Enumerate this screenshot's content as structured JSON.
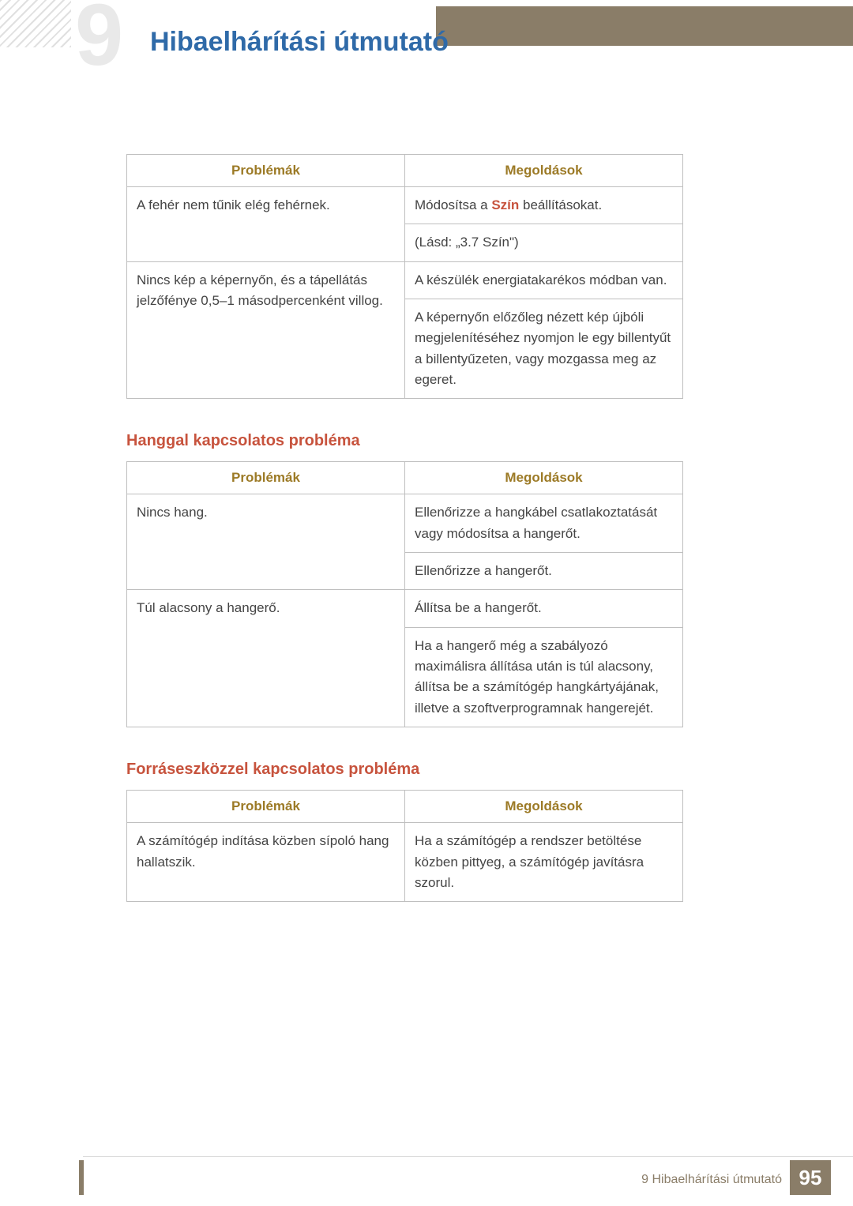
{
  "chapter_digit": "9",
  "page_title": "Hibaelhárítási útmutató",
  "colors": {
    "title": "#2f6aa8",
    "section_heading": "#c7533d",
    "table_header_text": "#9c7a26",
    "table_border": "#bfbfbf",
    "topbar": "#8a7d68",
    "footer_text": "#8a7d68",
    "page_num_bg": "#8a7d68",
    "page_num_text": "#ffffff",
    "body_text": "#444444",
    "inline_bold": "#c7533d"
  },
  "sections": [
    {
      "heading": null,
      "columns": [
        "Problémák",
        "Megoldások"
      ],
      "rows": [
        {
          "problem": "A fehér nem tűnik elég fehérnek.",
          "solutions": [
            {
              "prefix": "Módosítsa a ",
              "bold": "Szín",
              "suffix": " beállításokat."
            },
            {
              "text": "(Lásd: „3.7 Szín\")"
            }
          ]
        },
        {
          "problem": "Nincs kép a képernyőn, és a tápellátás jelzőfénye 0,5–1 másodpercenként villog.",
          "solutions": [
            {
              "text": "A készülék energiatakarékos módban van."
            },
            {
              "text": "A képernyőn előzőleg nézett kép újbóli megjelenítéséhez nyomjon le egy billentyűt a billentyűzeten, vagy mozgassa meg az egeret."
            }
          ]
        }
      ]
    },
    {
      "heading": "Hanggal kapcsolatos probléma",
      "columns": [
        "Problémák",
        "Megoldások"
      ],
      "rows": [
        {
          "problem": "Nincs hang.",
          "solutions": [
            {
              "text": "Ellenőrizze a hangkábel csatlakoztatását vagy módosítsa a hangerőt."
            },
            {
              "text": "Ellenőrizze a hangerőt."
            }
          ]
        },
        {
          "problem": "Túl alacsony a hangerő.",
          "solutions": [
            {
              "text": "Állítsa be a hangerőt."
            },
            {
              "text": "Ha a hangerő még a szabályozó maximálisra állítása után is túl alacsony, állítsa be a számítógép hangkártyájának, illetve a szoftverprogramnak hangerejét."
            }
          ]
        }
      ]
    },
    {
      "heading": "Forráseszközzel kapcsolatos probléma",
      "columns": [
        "Problémák",
        "Megoldások"
      ],
      "rows": [
        {
          "problem": "A számítógép indítása közben sípoló hang hallatszik.",
          "solutions": [
            {
              "text": "Ha a számítógép a rendszer betöltése közben pittyeg, a számítógép javításra szorul."
            }
          ]
        }
      ]
    }
  ],
  "footer": {
    "label_prefix": "9 ",
    "label": "Hibaelhárítási útmutató",
    "page_number": "95"
  }
}
